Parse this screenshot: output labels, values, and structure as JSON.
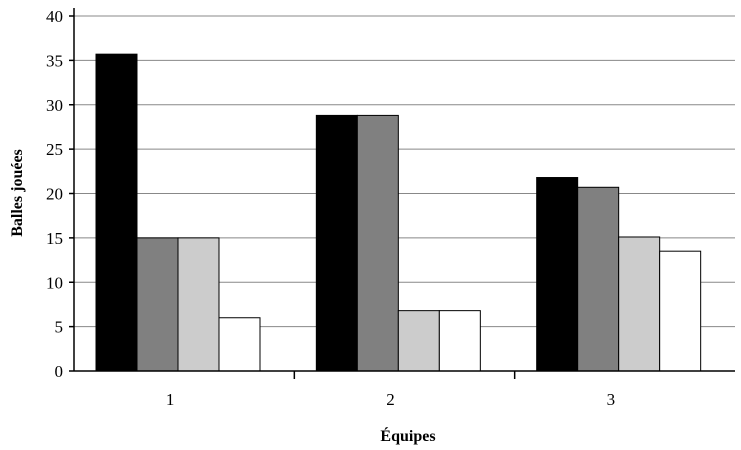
{
  "chart_data": {
    "type": "bar",
    "title": "",
    "xlabel": "Équipes",
    "ylabel": "Balles jouées",
    "ylim": [
      0,
      40
    ],
    "yticks": [
      0,
      5,
      10,
      15,
      20,
      25,
      30,
      35,
      40
    ],
    "grid": true,
    "legend": "none",
    "categories": [
      "1",
      "2",
      "3"
    ],
    "series": [
      {
        "color": "#000000",
        "values": [
          35.7,
          28.8,
          21.8
        ]
      },
      {
        "color": "#808080",
        "values": [
          15.0,
          28.8,
          20.7
        ]
      },
      {
        "color": "#cccccc",
        "values": [
          15.0,
          6.8,
          15.1
        ]
      },
      {
        "color": "#ffffff",
        "values": [
          6.0,
          6.8,
          13.5
        ]
      }
    ]
  }
}
